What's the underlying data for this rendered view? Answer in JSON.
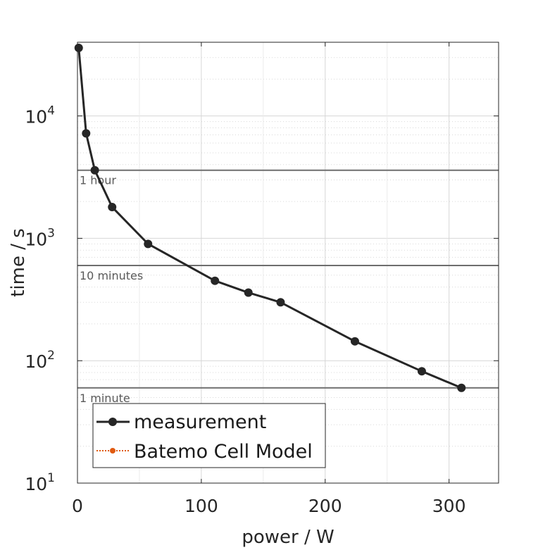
{
  "chart_data": {
    "type": "line",
    "xlabel": "power / W",
    "ylabel": "time / s",
    "xlim": [
      0,
      340
    ],
    "ylim": [
      10,
      40000
    ],
    "yscale": "log",
    "grid": true,
    "x_ticks": [
      0,
      100,
      200,
      300
    ],
    "y_ticks": [
      {
        "value": 10,
        "base": "10",
        "exp": "1"
      },
      {
        "value": 100,
        "base": "10",
        "exp": "2"
      },
      {
        "value": 1000,
        "base": "10",
        "exp": "3"
      },
      {
        "value": 10000,
        "base": "10",
        "exp": "4"
      }
    ],
    "legend_position": "bottom-left",
    "series": [
      {
        "name": "measurement",
        "color": "#262626",
        "marker": "circle",
        "line": "solid",
        "x": [
          1,
          7,
          14,
          28,
          57,
          111,
          138,
          164,
          224,
          278,
          310
        ],
        "y": [
          36000,
          7200,
          3600,
          1800,
          900,
          450,
          360,
          300,
          144,
          82,
          60
        ]
      },
      {
        "name": "Batemo Cell Model",
        "color": "#e05a10",
        "marker": "circle",
        "line": "dotted",
        "x": [],
        "y": []
      }
    ],
    "reference_lines": [
      {
        "y": 3600,
        "label": "1 hour",
        "color": "#6e6e6e"
      },
      {
        "y": 600,
        "label": "10 minutes",
        "color": "#6e6e6e"
      },
      {
        "y": 60,
        "label": "1 minute",
        "color": "#6e6e6e"
      }
    ]
  }
}
